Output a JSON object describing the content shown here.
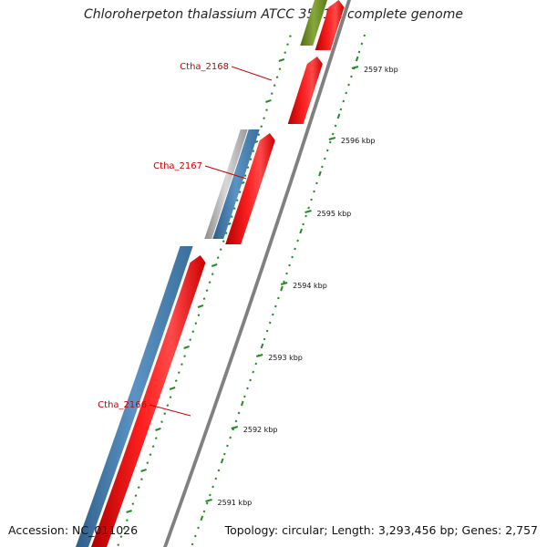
{
  "map": {
    "title": "Chloroherpeton thalassium ATCC 35110, complete genome",
    "accession": "Accession: NC_011026",
    "topology": "Topology: circular; Length: 3,293,456 bp; Genes: 2,757"
  },
  "scale_ticks": [
    "2597 kbp",
    "2596 kbp",
    "2595 kbp",
    "2594 kbp",
    "2593 kbp",
    "2592 kbp",
    "2591 kbp"
  ],
  "gene_labels": [
    "Ctha_2168",
    "Ctha_2167",
    "Ctha_2166"
  ],
  "colors": {
    "forward_cds": "#ff0000",
    "reverse_cds": "#4682b4",
    "trna": "#6b8e23",
    "other_feature": "#b0b0b0",
    "backbone": "#808080",
    "gc_ticks": "#228b22",
    "label_red": "#cc0000"
  }
}
